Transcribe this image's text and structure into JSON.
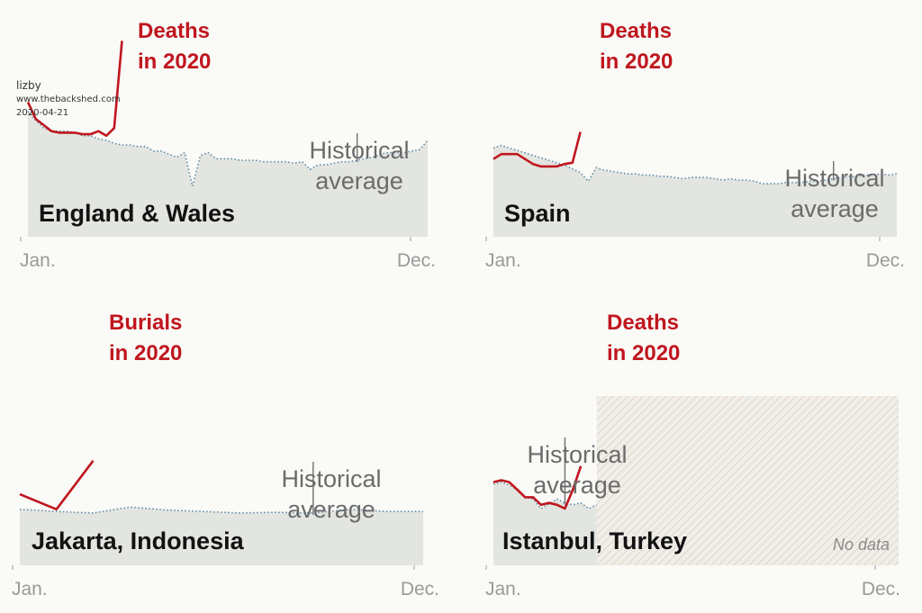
{
  "watermark": {
    "user": "lizby",
    "site": "www.thebackshed.com",
    "date": "2020-04-21"
  },
  "colors": {
    "red": "#c0161e",
    "area": "#e3e5e0",
    "avg_line": "#5d8aa8",
    "gray_text": "#6b6b6b",
    "label_text": "#121212",
    "axis": "#999999"
  },
  "chart_data": [
    {
      "type": "line",
      "title": "England & Wales",
      "x_tick_labels": [
        "Jan.",
        "Dec."
      ],
      "xlim": [
        1,
        52
      ],
      "ylim": [
        0,
        100
      ],
      "series": [
        {
          "name": "Historical average",
          "x": [
            1,
            2,
            3,
            4,
            5,
            6,
            7,
            8,
            9,
            10,
            11,
            12,
            13,
            14,
            15,
            16,
            17,
            18,
            19,
            20,
            21,
            22,
            23,
            24,
            25,
            26,
            27,
            28,
            29,
            30,
            31,
            32,
            33,
            34,
            35,
            36,
            37,
            38,
            39,
            40,
            41,
            42,
            43,
            44,
            45,
            46,
            47,
            48,
            49,
            50,
            51,
            52
          ],
          "y": [
            82,
            76,
            71,
            69,
            69,
            69,
            68,
            66,
            66,
            64,
            63,
            61,
            60,
            60,
            59,
            59,
            56,
            56,
            54,
            52,
            55,
            33,
            53,
            55,
            51,
            51,
            51,
            50,
            50,
            50,
            49,
            49,
            49,
            49,
            48,
            49,
            44,
            47,
            47,
            48,
            49,
            49,
            50,
            51,
            52,
            54,
            55,
            55,
            55,
            56,
            57,
            63
          ]
        },
        {
          "name": "Deaths in 2020",
          "x": [
            1,
            2,
            3,
            4,
            5,
            6,
            7,
            8,
            9,
            10,
            11,
            12,
            13
          ],
          "y": [
            88,
            77,
            73,
            69,
            68,
            68,
            68,
            67,
            67,
            69,
            66,
            71,
            128
          ]
        }
      ],
      "annotations": [
        {
          "text": [
            "Deaths",
            "in 2020"
          ],
          "series": 1
        },
        {
          "text": [
            "Historical",
            "average"
          ],
          "series": 0,
          "at_x": 43
        }
      ]
    },
    {
      "type": "line",
      "title": "Spain",
      "x_tick_labels": [
        "Jan.",
        "Dec."
      ],
      "xlim": [
        1,
        52
      ],
      "ylim": [
        0,
        100
      ],
      "series": [
        {
          "name": "Historical average",
          "x": [
            1,
            2,
            3,
            4,
            5,
            6,
            7,
            8,
            9,
            10,
            11,
            12,
            13,
            14,
            15,
            16,
            17,
            18,
            19,
            20,
            21,
            22,
            23,
            24,
            25,
            26,
            27,
            28,
            29,
            30,
            31,
            32,
            33,
            34,
            35,
            36,
            37,
            38,
            39,
            40,
            41,
            42,
            43,
            44,
            45,
            46,
            47,
            48,
            49,
            50,
            51,
            52
          ],
          "y": [
            72,
            74,
            72,
            70,
            68,
            66,
            64,
            62,
            60,
            58,
            55,
            52,
            45,
            56,
            54,
            53,
            52,
            51,
            51,
            50,
            50,
            49,
            49,
            48,
            47,
            48,
            48,
            48,
            47,
            46,
            47,
            46,
            46,
            45,
            43,
            43,
            43,
            44,
            44,
            44,
            45,
            45,
            46,
            47,
            48,
            49,
            49,
            50,
            50,
            51,
            50,
            51
          ]
        },
        {
          "name": "Deaths in 2020",
          "x": [
            1,
            2,
            3,
            4,
            5,
            6,
            7,
            8,
            9,
            10,
            11,
            12
          ],
          "y": [
            63,
            67,
            67,
            67,
            63,
            59,
            57,
            57,
            57,
            59,
            60,
            85
          ]
        }
      ],
      "annotations": [
        {
          "text": [
            "Deaths",
            "in 2020"
          ],
          "series": 1
        },
        {
          "text": [
            "Historical",
            "average"
          ],
          "series": 0,
          "at_x": 44
        }
      ]
    },
    {
      "type": "line",
      "title": "Jakarta, Indonesia",
      "x_tick_labels": [
        "Jan.",
        "Dec."
      ],
      "xlim": [
        1,
        12
      ],
      "ylim": [
        0,
        100
      ],
      "series": [
        {
          "name": "Historical average",
          "x": [
            1,
            2,
            3,
            4,
            5,
            6,
            7,
            8,
            9,
            10,
            11,
            12
          ],
          "y": [
            75,
            72,
            70,
            78,
            74,
            72,
            70,
            71,
            70,
            75,
            72,
            72
          ]
        },
        {
          "name": "Burials in 2020",
          "x": [
            1,
            2,
            3
          ],
          "y": [
            95,
            75,
            140
          ]
        }
      ],
      "annotations": [
        {
          "text": [
            "Burials",
            "in 2020"
          ],
          "series": 1
        },
        {
          "text": [
            "Historical",
            "average"
          ],
          "series": 0,
          "at_x": 9
        }
      ]
    },
    {
      "type": "line",
      "title": "Istanbul, Turkey",
      "no_data_label": "No data",
      "no_data_from_x": 14,
      "x_tick_labels": [
        "Jan.",
        "Dec."
      ],
      "xlim": [
        1,
        52
      ],
      "ylim": [
        0,
        100
      ],
      "series": [
        {
          "name": "Historical average",
          "x": [
            1,
            2,
            3,
            4,
            5,
            6,
            7,
            8,
            9,
            10,
            11,
            12,
            13,
            14
          ],
          "y": [
            86,
            88,
            85,
            80,
            72,
            70,
            60,
            65,
            70,
            66,
            64,
            66,
            60,
            64
          ]
        },
        {
          "name": "Deaths in 2020",
          "x": [
            1,
            2,
            3,
            4,
            5,
            6,
            7,
            8,
            9,
            10,
            11,
            12
          ],
          "y": [
            88,
            90,
            88,
            80,
            72,
            72,
            64,
            66,
            64,
            60,
            80,
            105
          ]
        }
      ],
      "annotations": [
        {
          "text": [
            "Deaths",
            "in 2020"
          ],
          "series": 1
        },
        {
          "text": [
            "Historical",
            "average"
          ],
          "series": 0,
          "at_x": 10
        }
      ]
    }
  ]
}
